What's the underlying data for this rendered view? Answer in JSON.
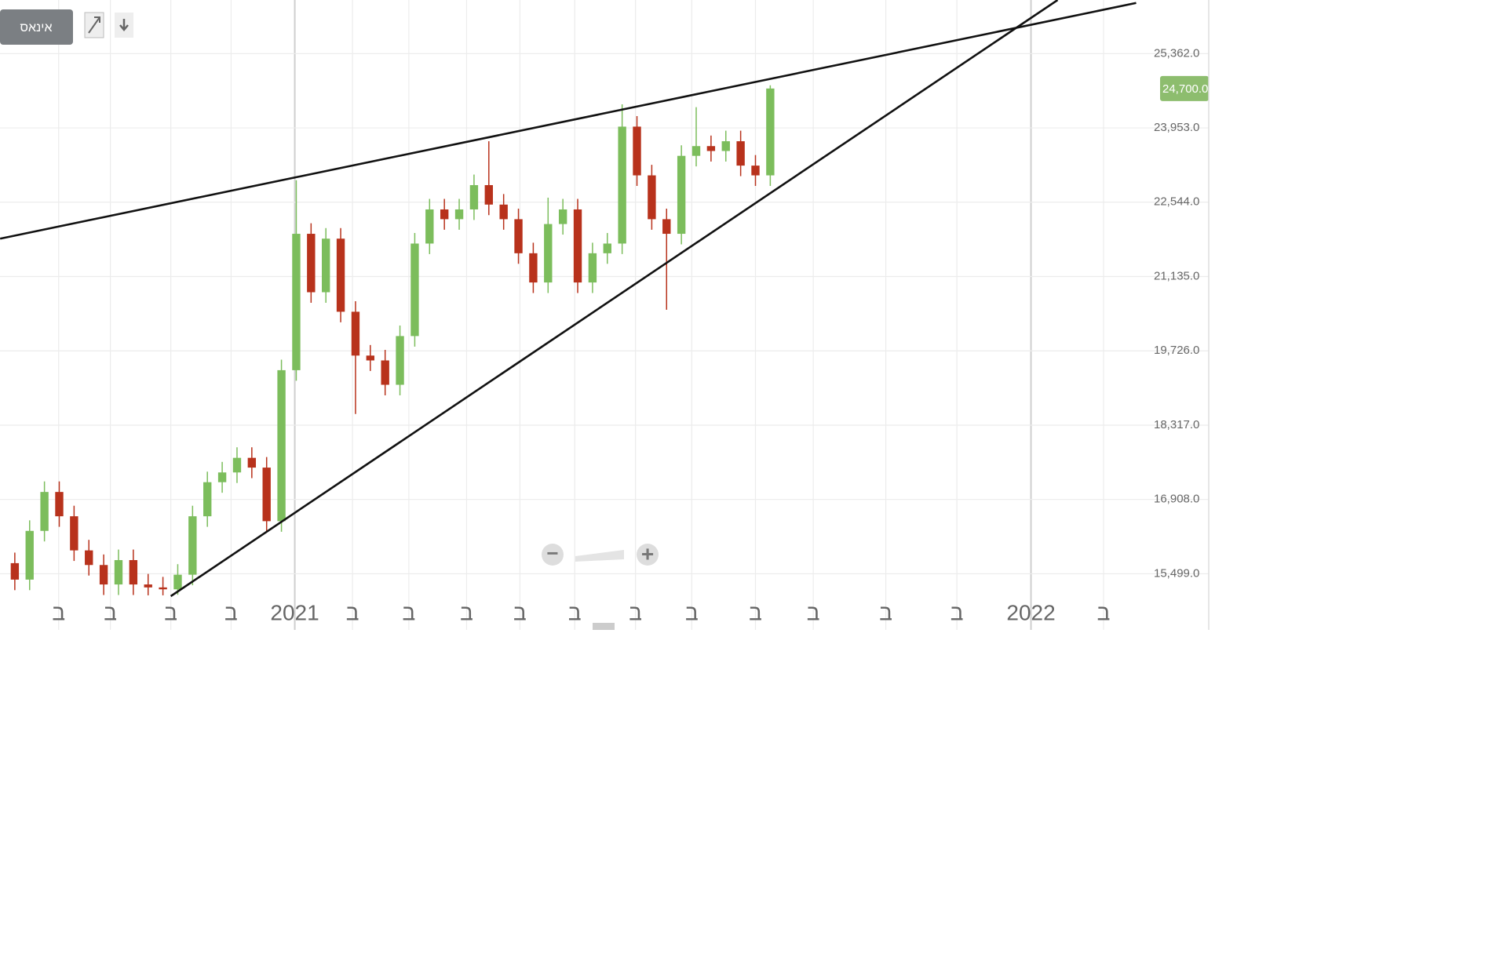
{
  "ui": {
    "button": "אינאס",
    "zoom_out": "−",
    "zoom_in": "+"
  },
  "chart_data": {
    "type": "candlestick",
    "up_color": "#7cbd5c",
    "down_color": "#b8321c",
    "xlim": [
      -1,
      80.6
    ],
    "ylim": [
      15074,
      26378
    ],
    "grid": true,
    "yticks": [
      {
        "value": 15499,
        "label": "15,499.0"
      },
      {
        "value": 16908,
        "label": "16,908.0"
      },
      {
        "value": 18317,
        "label": "18,317.0"
      },
      {
        "value": 19726,
        "label": "19,726.0"
      },
      {
        "value": 21135,
        "label": "21,135.0"
      },
      {
        "value": 22544,
        "label": "22,544.0"
      },
      {
        "value": 23953,
        "label": "23,953.0"
      },
      {
        "value": 25362,
        "label": "25,362.0"
      }
    ],
    "xticks": [
      {
        "value": 2.96,
        "label": "ב"
      },
      {
        "value": 6.45,
        "label": "ב"
      },
      {
        "value": 10.53,
        "label": "ב"
      },
      {
        "value": 14.6,
        "label": "ב"
      },
      {
        "value": 18.9,
        "label": "2021"
      },
      {
        "value": 22.8,
        "label": "ב"
      },
      {
        "value": 26.6,
        "label": "ב"
      },
      {
        "value": 30.5,
        "label": "ב"
      },
      {
        "value": 34.1,
        "label": "ב"
      },
      {
        "value": 37.8,
        "label": "ב"
      },
      {
        "value": 41.9,
        "label": "ב"
      },
      {
        "value": 45.7,
        "label": "ב"
      },
      {
        "value": 50,
        "label": "ב"
      },
      {
        "value": 53.9,
        "label": "ב"
      },
      {
        "value": 58.8,
        "label": "ב"
      },
      {
        "value": 63.6,
        "label": "ב"
      },
      {
        "value": 68.6,
        "label": "2022"
      },
      {
        "value": 73.5,
        "label": "ב"
      }
    ],
    "open": [
      15700,
      15388,
      16312,
      17050,
      16589,
      15942,
      15665,
      15296,
      15758,
      15296,
      15240,
      15204,
      15481,
      16589,
      17235,
      17420,
      17697,
      17512,
      16496,
      19359,
      21945,
      20837,
      21853,
      20467,
      19636,
      19544,
      19082,
      20006,
      21760,
      22407,
      22222,
      22407,
      22868,
      22499,
      22222,
      21576,
      21022,
      22130,
      22407,
      21022,
      21576,
      21760,
      23977,
      23053,
      22222,
      21945,
      23423,
      23608,
      23515,
      23700,
      23238,
      23053
    ],
    "high": [
      15900,
      16512,
      17250,
      17250,
      16789,
      16142,
      15865,
      15958,
      15958,
      15496,
      15440,
      15681,
      16789,
      17435,
      17620,
      17897,
      17897,
      17712,
      19559,
      22961,
      22145,
      22053,
      22053,
      20667,
      19836,
      19744,
      20206,
      21960,
      22607,
      22607,
      22607,
      23068,
      23700,
      22699,
      22422,
      21776,
      22630,
      22607,
      22607,
      21776,
      21960,
      24400,
      24177,
      23253,
      22422,
      23623,
      24346,
      23808,
      23900,
      23900,
      23438,
      24760
    ],
    "low": [
      15188,
      15188,
      16112,
      16389,
      15742,
      15465,
      15096,
      15096,
      15096,
      15090,
      15090,
      15100,
      15281,
      16389,
      17035,
      17220,
      17312,
      16296,
      16296,
      19159,
      20637,
      20637,
      20267,
      18528,
      19344,
      18882,
      18882,
      19806,
      21560,
      22022,
      22022,
      22207,
      22299,
      22022,
      21376,
      20822,
      20822,
      21930,
      20822,
      20822,
      21376,
      21560,
      22853,
      22022,
      20505,
      21745,
      23223,
      23315,
      23315,
      23038,
      22853,
      22853
    ],
    "close": [
      15388,
      16312,
      17050,
      16589,
      15942,
      15665,
      15296,
      15758,
      15296,
      15240,
      15204,
      15481,
      16589,
      17235,
      17420,
      17697,
      17512,
      16496,
      19359,
      21945,
      20837,
      21853,
      20467,
      19636,
      19544,
      19082,
      20006,
      21760,
      22407,
      22222,
      22407,
      22868,
      22499,
      22222,
      21576,
      21022,
      22130,
      22407,
      21022,
      21576,
      21760,
      23977,
      23053,
      22222,
      21945,
      23423,
      23608,
      23515,
      23700,
      23238,
      23053,
      24700
    ],
    "last_price": {
      "value": 24700,
      "label": "24,700.0",
      "color": "#8dbd6e"
    },
    "trendlines": [
      {
        "x": [
          -0.99,
          75.7
        ],
        "y": [
          21853,
          26322
        ],
        "color": "#111111"
      },
      {
        "x": [
          10.53,
          70.4
        ],
        "y": [
          15074,
          26378
        ],
        "color": "#111111"
      }
    ]
  }
}
